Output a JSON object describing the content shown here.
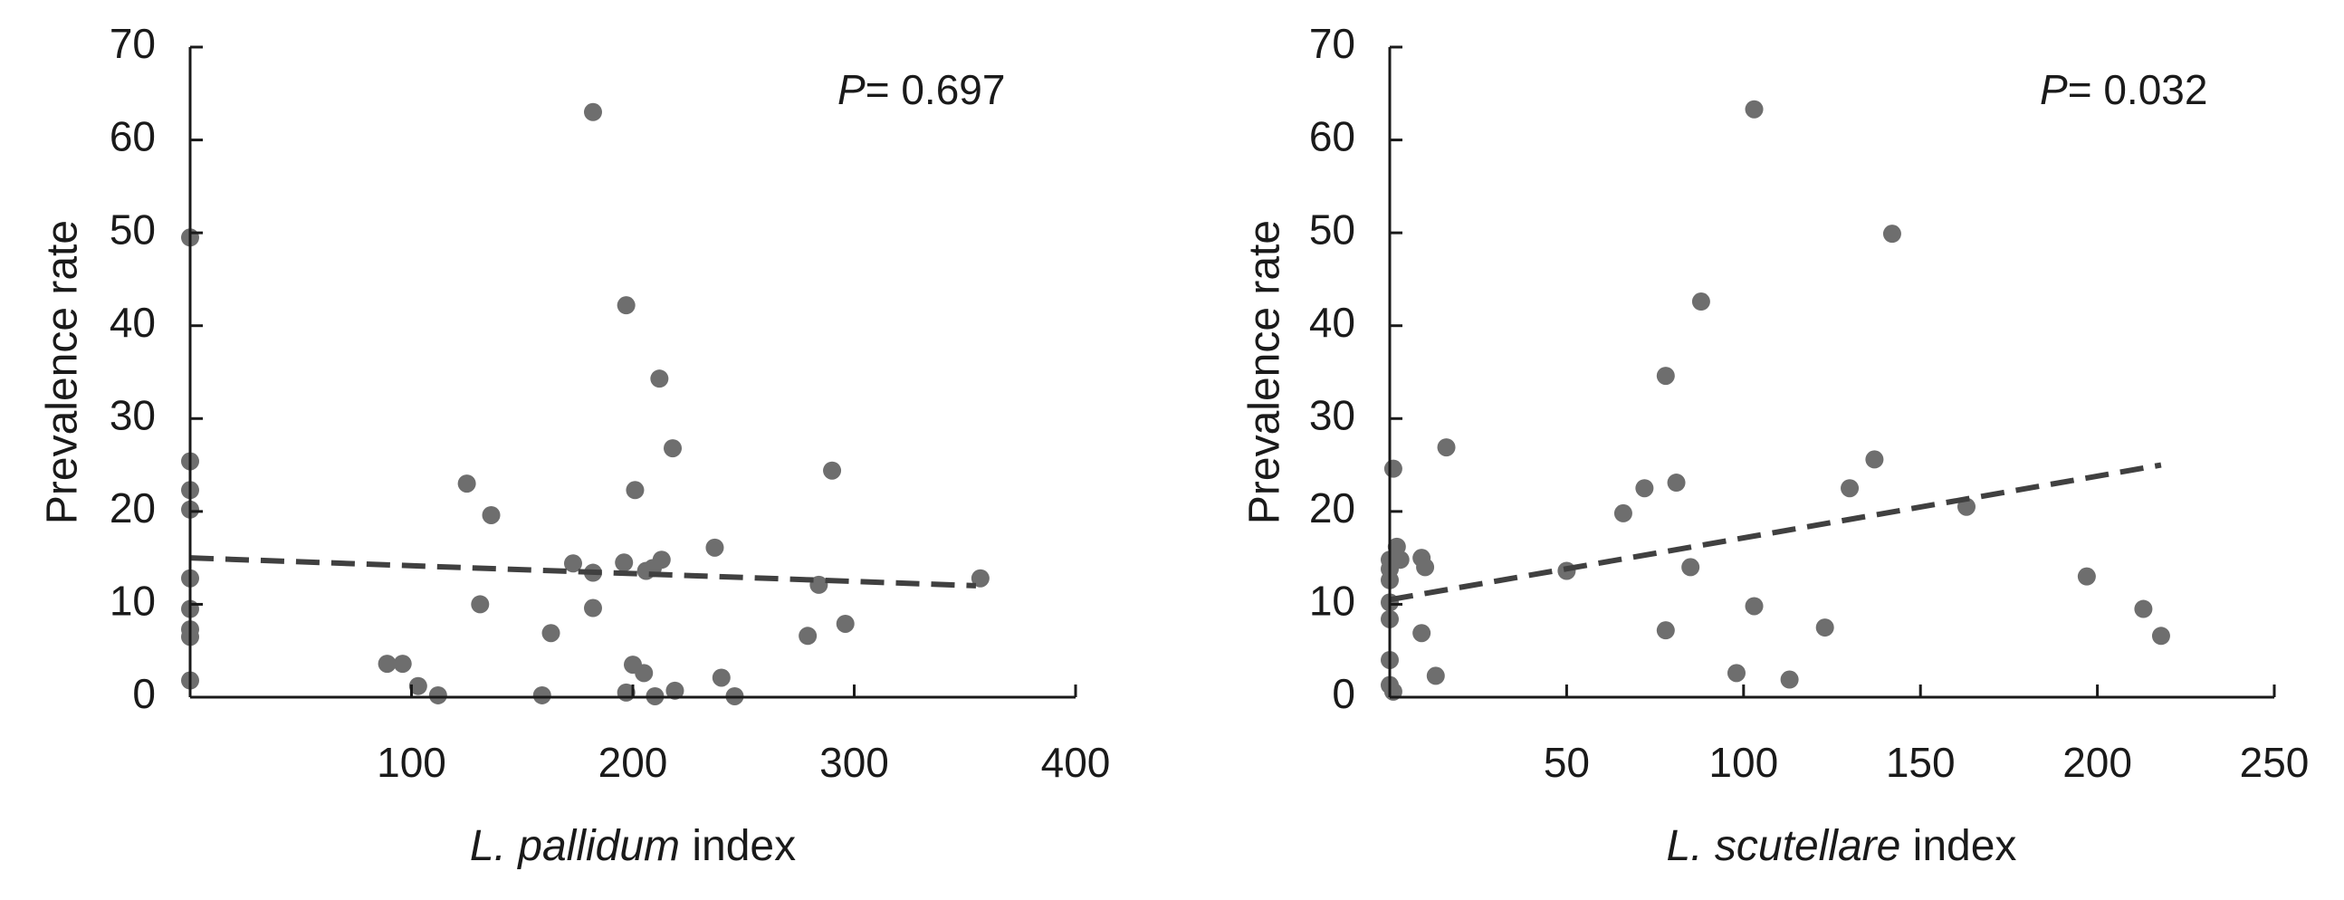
{
  "chart_data": [
    {
      "type": "scatter",
      "title": "",
      "xlabel_italic": "L. pallidum",
      "xlabel_rest": " index",
      "ylabel": "Prevalence rate",
      "annotation_p_label": "P",
      "annotation_p_value": "= 0.697",
      "xlim": [
        0,
        400
      ],
      "ylim": [
        0,
        70
      ],
      "xticks": [
        100,
        200,
        300,
        400
      ],
      "yticks": [
        0,
        10,
        20,
        30,
        40,
        50,
        60,
        70
      ],
      "grid": false,
      "legend": "none",
      "marker_color": "#6e6e6e",
      "trend_color": "#404040",
      "trendline": {
        "x": [
          0,
          355
        ],
        "y": [
          15.0,
          12.0
        ]
      },
      "points": [
        {
          "x": 0,
          "y": 49.5
        },
        {
          "x": 0,
          "y": 25.4
        },
        {
          "x": 0,
          "y": 22.3
        },
        {
          "x": 0,
          "y": 20.2
        },
        {
          "x": 0,
          "y": 12.8
        },
        {
          "x": 0,
          "y": 9.5
        },
        {
          "x": 0,
          "y": 7.3
        },
        {
          "x": 0,
          "y": 6.5
        },
        {
          "x": 0,
          "y": 1.8
        },
        {
          "x": 89,
          "y": 3.6
        },
        {
          "x": 96,
          "y": 3.6
        },
        {
          "x": 103,
          "y": 1.2
        },
        {
          "x": 112,
          "y": 0.2
        },
        {
          "x": 125,
          "y": 23.0
        },
        {
          "x": 131,
          "y": 10.0
        },
        {
          "x": 136,
          "y": 19.6
        },
        {
          "x": 159,
          "y": 0.2
        },
        {
          "x": 163,
          "y": 6.9
        },
        {
          "x": 173,
          "y": 14.4
        },
        {
          "x": 182,
          "y": 63.0
        },
        {
          "x": 182,
          "y": 13.4
        },
        {
          "x": 182,
          "y": 9.6
        },
        {
          "x": 197,
          "y": 42.2
        },
        {
          "x": 196,
          "y": 14.5
        },
        {
          "x": 197,
          "y": 0.5
        },
        {
          "x": 200,
          "y": 3.5
        },
        {
          "x": 201,
          "y": 22.3
        },
        {
          "x": 205,
          "y": 2.6
        },
        {
          "x": 206,
          "y": 13.6
        },
        {
          "x": 209,
          "y": 13.9
        },
        {
          "x": 210,
          "y": 0.1
        },
        {
          "x": 212,
          "y": 34.3
        },
        {
          "x": 213,
          "y": 14.8
        },
        {
          "x": 218,
          "y": 26.8
        },
        {
          "x": 219,
          "y": 0.7
        },
        {
          "x": 237,
          "y": 16.1
        },
        {
          "x": 240,
          "y": 2.1
        },
        {
          "x": 246,
          "y": 0.1
        },
        {
          "x": 279,
          "y": 6.6
        },
        {
          "x": 284,
          "y": 12.1
        },
        {
          "x": 290,
          "y": 24.4
        },
        {
          "x": 296,
          "y": 7.9
        },
        {
          "x": 357,
          "y": 12.8
        }
      ]
    },
    {
      "type": "scatter",
      "title": "",
      "xlabel_italic": "L. scutellare",
      "xlabel_rest": " index",
      "ylabel": "Prevalence rate",
      "annotation_p_label": "P",
      "annotation_p_value": "= 0.032",
      "xlim": [
        0,
        250
      ],
      "ylim": [
        0,
        70
      ],
      "xticks": [
        50,
        100,
        150,
        200,
        250
      ],
      "yticks": [
        0,
        10,
        20,
        30,
        40,
        50,
        60,
        70
      ],
      "grid": false,
      "legend": "none",
      "marker_color": "#6e6e6e",
      "trend_color": "#404040",
      "trendline": {
        "x": [
          0,
          218
        ],
        "y": [
          10.5,
          25.0
        ]
      },
      "points": [
        {
          "x": 1,
          "y": 24.6
        },
        {
          "x": 2,
          "y": 16.2
        },
        {
          "x": 3,
          "y": 14.8
        },
        {
          "x": 0,
          "y": 14.8
        },
        {
          "x": 0,
          "y": 13.8
        },
        {
          "x": 0,
          "y": 12.6
        },
        {
          "x": 0,
          "y": 10.2
        },
        {
          "x": 0,
          "y": 8.4
        },
        {
          "x": 0,
          "y": 4.0
        },
        {
          "x": 0,
          "y": 1.3
        },
        {
          "x": 1,
          "y": 0.6
        },
        {
          "x": 9,
          "y": 15.0
        },
        {
          "x": 10,
          "y": 14.0
        },
        {
          "x": 9,
          "y": 6.9
        },
        {
          "x": 13,
          "y": 2.3
        },
        {
          "x": 16,
          "y": 26.9
        },
        {
          "x": 50,
          "y": 13.6
        },
        {
          "x": 66,
          "y": 19.8
        },
        {
          "x": 72,
          "y": 22.5
        },
        {
          "x": 78,
          "y": 34.6
        },
        {
          "x": 78,
          "y": 7.2
        },
        {
          "x": 81,
          "y": 23.1
        },
        {
          "x": 85,
          "y": 14.0
        },
        {
          "x": 88,
          "y": 42.6
        },
        {
          "x": 98,
          "y": 2.6
        },
        {
          "x": 103,
          "y": 63.3
        },
        {
          "x": 103,
          "y": 9.8
        },
        {
          "x": 113,
          "y": 1.9
        },
        {
          "x": 123,
          "y": 7.5
        },
        {
          "x": 130,
          "y": 22.5
        },
        {
          "x": 137,
          "y": 25.6
        },
        {
          "x": 142,
          "y": 49.9
        },
        {
          "x": 163,
          "y": 20.5
        },
        {
          "x": 197,
          "y": 13.0
        },
        {
          "x": 213,
          "y": 9.5
        },
        {
          "x": 218,
          "y": 6.6
        }
      ]
    }
  ]
}
